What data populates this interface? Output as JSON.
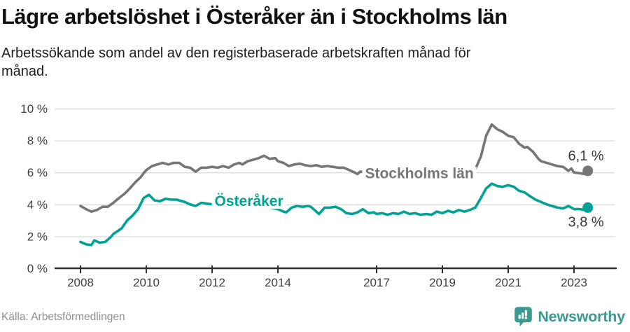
{
  "header": {
    "title": "Lägre arbetslöshet i Österåker än i Stockholms län",
    "subtitle_lines": [
      "Arbetssökande som andel av den registerbaserade arbetskraften månad för",
      "månad."
    ]
  },
  "footer": {
    "source": "Källa: Arbetsförmedlingen",
    "brand": "Newsworthy"
  },
  "colors": {
    "stockholm_gray": "#767676",
    "osteraker_teal": "#00a296",
    "gridline": "#dcdcdc",
    "axis": "#2e2e2e",
    "tick_label": "#3e3e3e",
    "value_label": "#383838",
    "brand_teal": "#3a9a8f",
    "background": "#ffffff"
  },
  "icons": {
    "brand_badge": "newsworthy-speech-bubble-bar-chart-icon"
  },
  "chart_data": {
    "type": "line",
    "x_unit": "year (monthly observations)",
    "ylabel": "",
    "xlabel": "",
    "grid": "horizontal",
    "xlim": [
      2007.2,
      2024.3
    ],
    "ylim": [
      0,
      10
    ],
    "y_ticks": [
      0,
      2,
      4,
      6,
      8,
      10
    ],
    "y_tick_suffix": " %",
    "x_ticks": [
      2008,
      2010,
      2012,
      2014,
      2017,
      2019,
      2021,
      2023
    ],
    "legend_position": "inline-labels-on-lines",
    "series": [
      {
        "name": "Stockholms län",
        "color": "#767676",
        "end_value": 6.1,
        "end_label": "6,1 %",
        "end_label_side": "above",
        "label_anchor": {
          "x": 2018.3,
          "y": 5.95
        },
        "points": [
          [
            2008.0,
            3.9
          ],
          [
            2008.17,
            3.7
          ],
          [
            2008.33,
            3.55
          ],
          [
            2008.5,
            3.65
          ],
          [
            2008.67,
            3.85
          ],
          [
            2008.83,
            3.85
          ],
          [
            2009.0,
            4.1
          ],
          [
            2009.17,
            4.4
          ],
          [
            2009.33,
            4.65
          ],
          [
            2009.5,
            5.0
          ],
          [
            2009.67,
            5.4
          ],
          [
            2009.83,
            5.7
          ],
          [
            2009.92,
            5.95
          ],
          [
            2010.0,
            6.15
          ],
          [
            2010.17,
            6.4
          ],
          [
            2010.33,
            6.5
          ],
          [
            2010.5,
            6.6
          ],
          [
            2010.67,
            6.5
          ],
          [
            2010.83,
            6.6
          ],
          [
            2011.0,
            6.6
          ],
          [
            2011.17,
            6.35
          ],
          [
            2011.33,
            6.3
          ],
          [
            2011.5,
            6.05
          ],
          [
            2011.67,
            6.3
          ],
          [
            2011.83,
            6.3
          ],
          [
            2012.0,
            6.35
          ],
          [
            2012.17,
            6.3
          ],
          [
            2012.33,
            6.4
          ],
          [
            2012.5,
            6.3
          ],
          [
            2012.67,
            6.5
          ],
          [
            2012.83,
            6.6
          ],
          [
            2012.92,
            6.5
          ],
          [
            2013.08,
            6.7
          ],
          [
            2013.25,
            6.8
          ],
          [
            2013.42,
            6.9
          ],
          [
            2013.58,
            7.05
          ],
          [
            2013.75,
            6.85
          ],
          [
            2013.92,
            6.9
          ],
          [
            2014.0,
            6.7
          ],
          [
            2014.17,
            6.6
          ],
          [
            2014.33,
            6.4
          ],
          [
            2014.5,
            6.5
          ],
          [
            2014.67,
            6.55
          ],
          [
            2014.83,
            6.45
          ],
          [
            2015.0,
            6.4
          ],
          [
            2015.17,
            6.45
          ],
          [
            2015.33,
            6.35
          ],
          [
            2015.5,
            6.4
          ],
          [
            2015.67,
            6.35
          ],
          [
            2015.83,
            6.3
          ],
          [
            2016.0,
            6.3
          ],
          [
            2016.17,
            6.15
          ],
          [
            2016.33,
            6.0
          ],
          [
            2016.42,
            5.9
          ],
          [
            2016.5,
            6.05
          ],
          [
            2016.75,
            6.0
          ],
          [
            2017.0,
            6.0
          ],
          [
            2017.25,
            5.9
          ],
          [
            2017.5,
            5.95
          ],
          [
            2017.75,
            5.85
          ],
          [
            2018.0,
            5.9
          ],
          [
            2018.25,
            5.85
          ],
          [
            2018.5,
            5.9
          ],
          [
            2018.75,
            5.95
          ],
          [
            2019.0,
            6.0
          ],
          [
            2019.25,
            6.05
          ],
          [
            2019.5,
            6.1
          ],
          [
            2019.75,
            6.1
          ],
          [
            2019.92,
            6.15
          ],
          [
            2020.0,
            6.2
          ],
          [
            2020.17,
            7.0
          ],
          [
            2020.33,
            8.3
          ],
          [
            2020.5,
            9.0
          ],
          [
            2020.67,
            8.7
          ],
          [
            2020.83,
            8.55
          ],
          [
            2021.0,
            8.3
          ],
          [
            2021.17,
            8.2
          ],
          [
            2021.33,
            7.8
          ],
          [
            2021.5,
            7.55
          ],
          [
            2021.58,
            7.6
          ],
          [
            2021.75,
            7.3
          ],
          [
            2021.92,
            6.85
          ],
          [
            2022.0,
            6.7
          ],
          [
            2022.17,
            6.6
          ],
          [
            2022.33,
            6.5
          ],
          [
            2022.5,
            6.4
          ],
          [
            2022.67,
            6.35
          ],
          [
            2022.83,
            6.1
          ],
          [
            2022.92,
            6.25
          ],
          [
            2023.0,
            6.0
          ],
          [
            2023.17,
            5.95
          ],
          [
            2023.33,
            5.9
          ],
          [
            2023.42,
            6.1
          ]
        ]
      },
      {
        "name": "Österåker",
        "color": "#00a296",
        "end_value": 3.8,
        "end_label": "3,8 %",
        "end_label_side": "below",
        "label_anchor": {
          "x": 2013.12,
          "y": 4.2
        },
        "points": [
          [
            2008.0,
            1.65
          ],
          [
            2008.17,
            1.5
          ],
          [
            2008.33,
            1.45
          ],
          [
            2008.42,
            1.75
          ],
          [
            2008.58,
            1.6
          ],
          [
            2008.75,
            1.65
          ],
          [
            2008.92,
            1.95
          ],
          [
            2009.0,
            2.15
          ],
          [
            2009.25,
            2.5
          ],
          [
            2009.42,
            3.0
          ],
          [
            2009.58,
            3.3
          ],
          [
            2009.75,
            3.7
          ],
          [
            2009.92,
            4.4
          ],
          [
            2010.08,
            4.6
          ],
          [
            2010.25,
            4.25
          ],
          [
            2010.42,
            4.2
          ],
          [
            2010.58,
            4.35
          ],
          [
            2010.75,
            4.3
          ],
          [
            2010.92,
            4.3
          ],
          [
            2011.0,
            4.25
          ],
          [
            2011.17,
            4.15
          ],
          [
            2011.33,
            4.0
          ],
          [
            2011.5,
            3.9
          ],
          [
            2011.67,
            4.1
          ],
          [
            2011.83,
            4.05
          ],
          [
            2012.0,
            4.0
          ],
          [
            2012.25,
            3.9
          ],
          [
            2012.5,
            3.85
          ],
          [
            2012.75,
            3.9
          ],
          [
            2013.0,
            3.95
          ],
          [
            2013.25,
            3.9
          ],
          [
            2013.5,
            3.85
          ],
          [
            2013.75,
            3.8
          ],
          [
            2014.0,
            3.7
          ],
          [
            2014.17,
            3.55
          ],
          [
            2014.25,
            3.5
          ],
          [
            2014.42,
            3.8
          ],
          [
            2014.58,
            3.9
          ],
          [
            2014.75,
            3.85
          ],
          [
            2014.92,
            3.9
          ],
          [
            2015.0,
            3.85
          ],
          [
            2015.25,
            3.4
          ],
          [
            2015.42,
            3.8
          ],
          [
            2015.58,
            3.8
          ],
          [
            2015.75,
            3.85
          ],
          [
            2015.92,
            3.7
          ],
          [
            2016.08,
            3.45
          ],
          [
            2016.25,
            3.4
          ],
          [
            2016.42,
            3.5
          ],
          [
            2016.58,
            3.7
          ],
          [
            2016.75,
            3.45
          ],
          [
            2016.92,
            3.5
          ],
          [
            2017.0,
            3.4
          ],
          [
            2017.17,
            3.45
          ],
          [
            2017.33,
            3.35
          ],
          [
            2017.5,
            3.45
          ],
          [
            2017.67,
            3.4
          ],
          [
            2017.83,
            3.55
          ],
          [
            2018.0,
            3.4
          ],
          [
            2018.17,
            3.45
          ],
          [
            2018.33,
            3.35
          ],
          [
            2018.5,
            3.4
          ],
          [
            2018.67,
            3.35
          ],
          [
            2018.83,
            3.55
          ],
          [
            2019.0,
            3.45
          ],
          [
            2019.17,
            3.6
          ],
          [
            2019.33,
            3.5
          ],
          [
            2019.5,
            3.65
          ],
          [
            2019.67,
            3.55
          ],
          [
            2019.83,
            3.65
          ],
          [
            2020.0,
            3.8
          ],
          [
            2020.17,
            4.4
          ],
          [
            2020.33,
            5.0
          ],
          [
            2020.5,
            5.3
          ],
          [
            2020.67,
            5.15
          ],
          [
            2020.83,
            5.1
          ],
          [
            2021.0,
            5.2
          ],
          [
            2021.17,
            5.1
          ],
          [
            2021.33,
            4.85
          ],
          [
            2021.5,
            4.75
          ],
          [
            2021.67,
            4.5
          ],
          [
            2021.83,
            4.3
          ],
          [
            2022.0,
            4.15
          ],
          [
            2022.17,
            4.0
          ],
          [
            2022.33,
            3.9
          ],
          [
            2022.5,
            3.8
          ],
          [
            2022.67,
            3.75
          ],
          [
            2022.83,
            3.9
          ],
          [
            2023.0,
            3.7
          ],
          [
            2023.17,
            3.7
          ],
          [
            2023.33,
            3.65
          ],
          [
            2023.42,
            3.8
          ]
        ]
      }
    ]
  }
}
